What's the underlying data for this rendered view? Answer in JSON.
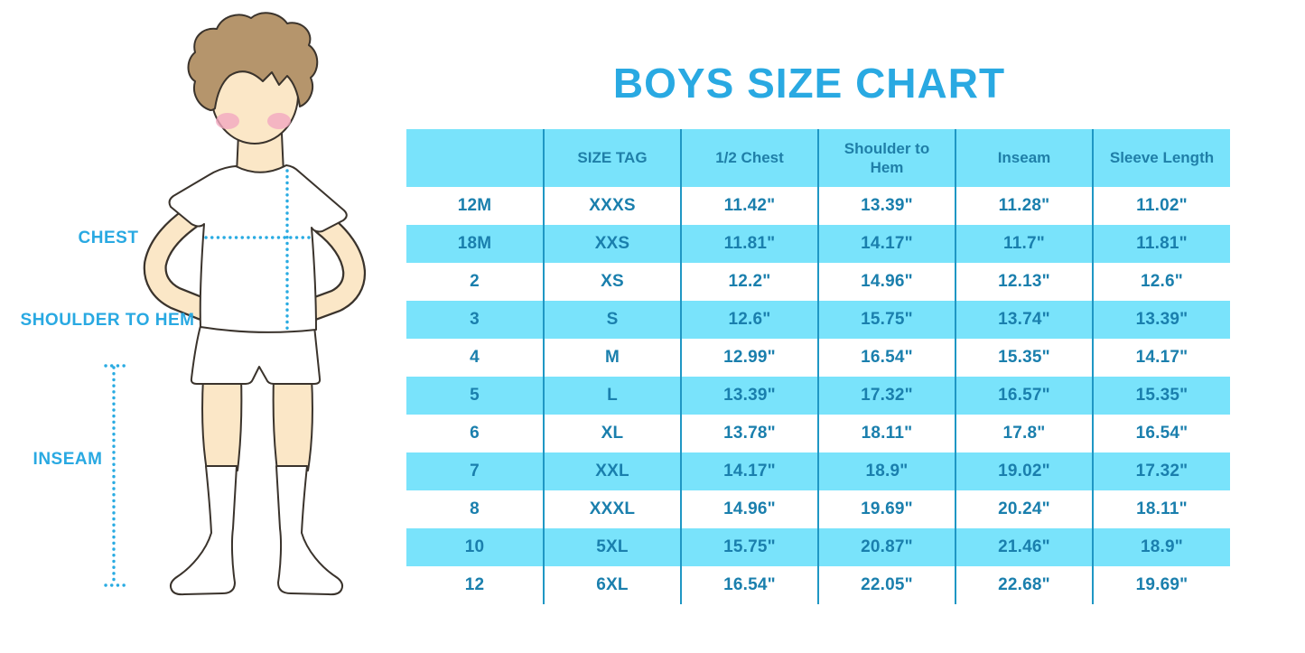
{
  "page": {
    "title": "BOYS SIZE CHART"
  },
  "figure": {
    "labels": {
      "chest": "CHEST",
      "shoulder_to_hem": "SHOULDER TO HEM",
      "inseam": "INSEAM"
    }
  },
  "colors": {
    "title_blue": "#29A9E2",
    "measure_line_blue": "#29ABE2",
    "table_band_cyan": "#79E3FB",
    "table_text_blue": "#1A7FAD",
    "header_text_blue": "#1F7FA8",
    "column_line_blue": "#1F97C4",
    "skin": "#FBE7C7",
    "hair_brown": "#B5956C",
    "blush_pink": "#F2A9C0"
  },
  "chart_data": {
    "type": "table",
    "title": "BOYS SIZE CHART",
    "columns": [
      "",
      "SIZE TAG",
      "1/2 Chest",
      "Shoulder to Hem",
      "Inseam",
      "Sleeve Length"
    ],
    "rows": [
      [
        "12M",
        "XXXS",
        "11.42\"",
        "13.39\"",
        "11.28\"",
        "11.02\""
      ],
      [
        "18M",
        "XXS",
        "11.81\"",
        "14.17\"",
        "11.7\"",
        "11.81\""
      ],
      [
        "2",
        "XS",
        "12.2\"",
        "14.96\"",
        "12.13\"",
        "12.6\""
      ],
      [
        "3",
        "S",
        "12.6\"",
        "15.75\"",
        "13.74\"",
        "13.39\""
      ],
      [
        "4",
        "M",
        "12.99\"",
        "16.54\"",
        "15.35\"",
        "14.17\""
      ],
      [
        "5",
        "L",
        "13.39\"",
        "17.32\"",
        "16.57\"",
        "15.35\""
      ],
      [
        "6",
        "XL",
        "13.78\"",
        "18.11\"",
        "17.8\"",
        "16.54\""
      ],
      [
        "7",
        "XXL",
        "14.17\"",
        "18.9\"",
        "19.02\"",
        "17.32\""
      ],
      [
        "8",
        "XXXL",
        "14.96\"",
        "19.69\"",
        "20.24\"",
        "18.11\""
      ],
      [
        "10",
        "5XL",
        "15.75\"",
        "20.87\"",
        "21.46\"",
        "18.9\""
      ],
      [
        "12",
        "6XL",
        "16.54\"",
        "22.05\"",
        "22.68\"",
        "19.69\""
      ]
    ],
    "layout": {
      "banded_rows": true,
      "band_color": "#79E3FB",
      "grid": "vertical-only"
    }
  }
}
